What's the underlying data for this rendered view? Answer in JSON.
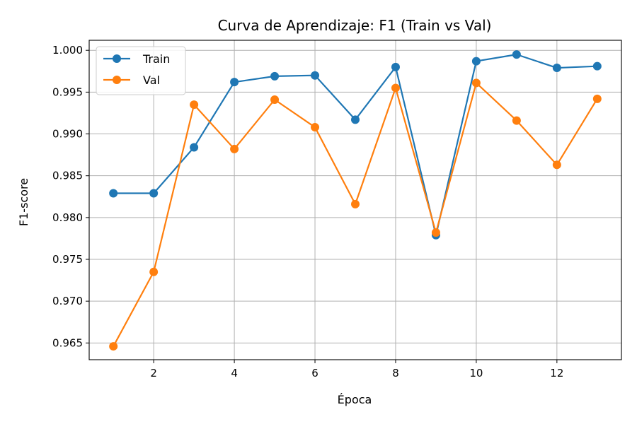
{
  "chart_data": {
    "type": "line",
    "title": "Curva de Aprendizaje: F1 (Train vs Val)",
    "xlabel": "Época",
    "ylabel": "F1-score",
    "xlim": [
      0.4,
      13.6
    ],
    "ylim": [
      0.963,
      1.0012
    ],
    "xticks": [
      2,
      4,
      6,
      8,
      10,
      12
    ],
    "yticks": [
      0.965,
      0.97,
      0.975,
      0.98,
      0.985,
      0.99,
      0.995,
      1.0
    ],
    "ytick_labels": [
      "0.965",
      "0.970",
      "0.975",
      "0.980",
      "0.985",
      "0.990",
      "0.995",
      "1.000"
    ],
    "grid": true,
    "legend_position": "top-left",
    "x": [
      1,
      2,
      3,
      4,
      5,
      6,
      7,
      8,
      9,
      10,
      11,
      12,
      13
    ],
    "series": [
      {
        "name": "Train",
        "color": "#1f77b4",
        "values": [
          0.9829,
          0.9829,
          0.9884,
          0.9962,
          0.9969,
          0.997,
          0.9917,
          0.998,
          0.9779,
          0.9987,
          0.9995,
          0.9979,
          0.9981
        ]
      },
      {
        "name": "Val",
        "color": "#ff7f0e",
        "values": [
          0.9646,
          0.9735,
          0.9935,
          0.9882,
          0.9941,
          0.9908,
          0.9816,
          0.9955,
          0.9782,
          0.9961,
          0.9916,
          0.9863,
          0.9942
        ]
      }
    ]
  }
}
